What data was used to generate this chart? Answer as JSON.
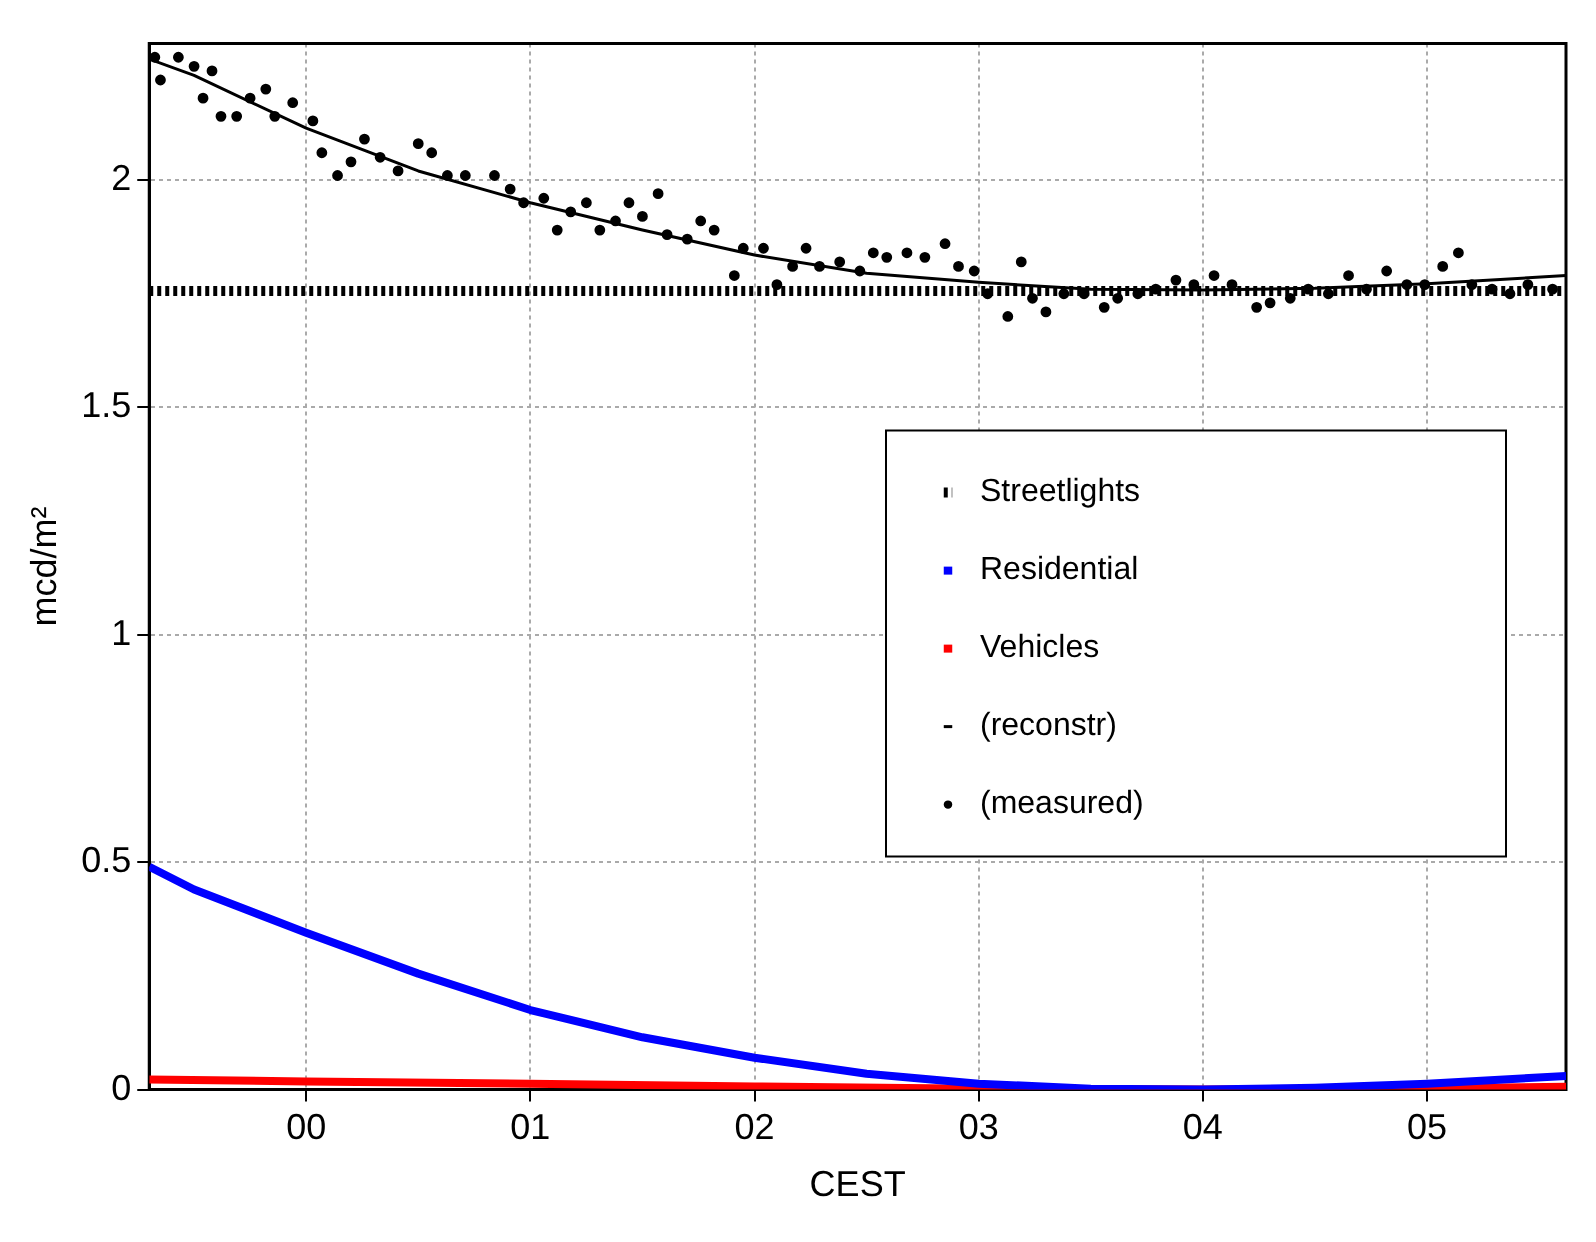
{
  "chart_data": {
    "type": "line",
    "xlabel": "CEST",
    "ylabel": "mcd/m²",
    "xlim": [
      -0.7,
      5.62
    ],
    "xticks": [
      {
        "value": 0,
        "label": "00"
      },
      {
        "value": 1,
        "label": "01"
      },
      {
        "value": 2,
        "label": "02"
      },
      {
        "value": 3,
        "label": "03"
      },
      {
        "value": 4,
        "label": "04"
      },
      {
        "value": 5,
        "label": "05"
      }
    ],
    "ylim": [
      0,
      2.3
    ],
    "yticks": [
      0,
      0.5,
      1,
      1.5,
      2
    ],
    "grid": true,
    "legend": "right",
    "series": [
      {
        "name": "Streetlights",
        "color": "#000000",
        "line_style": "dotted",
        "marker": "none",
        "x": [
          -0.7,
          5.62
        ],
        "values": [
          1.756,
          1.756
        ]
      },
      {
        "name": "Residential",
        "color": "#0000ff",
        "line_style": "solid",
        "marker": "none",
        "x": [
          -0.7,
          -0.5,
          0,
          0.5,
          1,
          1.5,
          2,
          2.5,
          3,
          3.5,
          4,
          4.5,
          5,
          5.62
        ],
        "values": [
          0.49,
          0.44,
          0.345,
          0.255,
          0.175,
          0.115,
          0.07,
          0.035,
          0.013,
          0.002,
          0,
          0.004,
          0.013,
          0.03
        ]
      },
      {
        "name": "Vehicles",
        "color": "#ff0000",
        "line_style": "solid",
        "marker": "none",
        "x": [
          -0.7,
          0,
          1,
          2,
          3,
          4,
          5,
          5.62
        ],
        "values": [
          0.022,
          0.018,
          0.013,
          0.007,
          0.002,
          0,
          0.003,
          0.006
        ]
      },
      {
        "name": "(reconstr)",
        "color": "#000000",
        "line_style": "solid",
        "marker": "none",
        "x": [
          -0.7,
          -0.5,
          0,
          0.5,
          1,
          1.5,
          2,
          2.5,
          3,
          3.5,
          4,
          4.5,
          5,
          5.62
        ],
        "values": [
          2.266,
          2.23,
          2.114,
          2.02,
          1.95,
          1.89,
          1.835,
          1.795,
          1.775,
          1.76,
          1.758,
          1.762,
          1.772,
          1.79
        ]
      },
      {
        "name": "(measured)",
        "type": "scatter",
        "color": "#000000",
        "marker": "circle",
        "x": [
          -0.675,
          -0.65,
          -0.57,
          -0.5,
          -0.46,
          -0.42,
          -0.38,
          -0.31,
          -0.25,
          -0.18,
          -0.14,
          -0.06,
          0.03,
          0.07,
          0.14,
          0.2,
          0.26,
          0.33,
          0.41,
          0.5,
          0.56,
          0.63,
          0.71,
          0.84,
          0.91,
          0.97,
          1.06,
          1.12,
          1.18,
          1.25,
          1.31,
          1.38,
          1.44,
          1.5,
          1.57,
          1.61,
          1.7,
          1.76,
          1.82,
          1.91,
          1.95,
          2.04,
          2.1,
          2.17,
          2.23,
          2.29,
          2.38,
          2.47,
          2.53,
          2.59,
          2.68,
          2.76,
          2.85,
          2.91,
          2.98,
          3.04,
          3.13,
          3.19,
          3.24,
          3.3,
          3.38,
          3.47,
          3.56,
          3.62,
          3.71,
          3.79,
          3.88,
          3.96,
          4.05,
          4.13,
          4.24,
          4.3,
          4.39,
          4.47,
          4.56,
          4.65,
          4.73,
          4.82,
          4.91,
          4.99,
          5.07,
          5.14,
          5.2,
          5.29,
          5.37,
          5.45,
          5.56
        ],
        "values": [
          2.27,
          2.22,
          2.27,
          2.25,
          2.18,
          2.24,
          2.14,
          2.14,
          2.18,
          2.2,
          2.14,
          2.17,
          2.13,
          2.06,
          2.01,
          2.04,
          2.09,
          2.05,
          2.02,
          2.08,
          2.06,
          2.01,
          2.01,
          2.01,
          1.98,
          1.95,
          1.96,
          1.89,
          1.93,
          1.95,
          1.89,
          1.91,
          1.95,
          1.92,
          1.97,
          1.88,
          1.87,
          1.91,
          1.89,
          1.79,
          1.85,
          1.85,
          1.77,
          1.81,
          1.85,
          1.81,
          1.82,
          1.8,
          1.84,
          1.83,
          1.84,
          1.83,
          1.86,
          1.81,
          1.8,
          1.75,
          1.7,
          1.82,
          1.74,
          1.71,
          1.75,
          1.75,
          1.72,
          1.74,
          1.75,
          1.76,
          1.78,
          1.77,
          1.79,
          1.77,
          1.72,
          1.73,
          1.74,
          1.76,
          1.75,
          1.79,
          1.76,
          1.8,
          1.77,
          1.77,
          1.81,
          1.84,
          1.77,
          1.76,
          1.75,
          1.77,
          1.76
        ]
      }
    ]
  }
}
